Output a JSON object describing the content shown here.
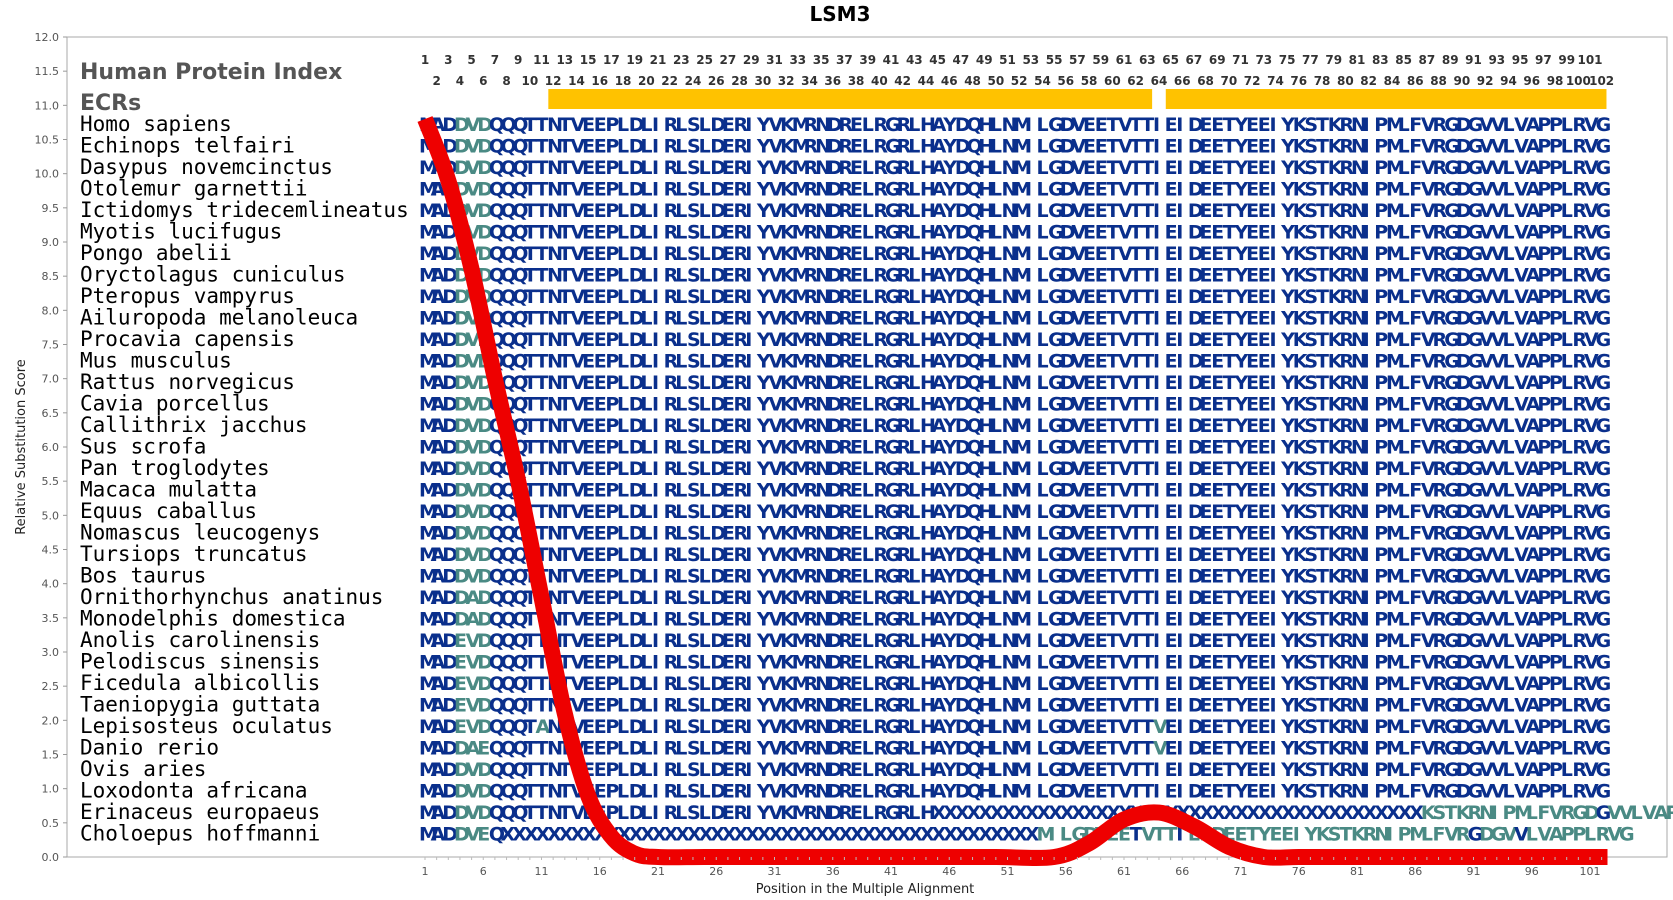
{
  "chart_data": {
    "type": "line",
    "title": "LSM3",
    "xlabel": "Position in the Multiple Alignment",
    "ylabel": "Relative Substitution Score",
    "ylim": [
      0,
      12
    ],
    "xlim": [
      0,
      103
    ],
    "y_ticks": [
      "0.0",
      "0.5",
      "1.0",
      "1.5",
      "2.0",
      "2.5",
      "3.0",
      "3.5",
      "4.0",
      "4.5",
      "5.0",
      "5.5",
      "6.0",
      "6.5",
      "7.0",
      "7.5",
      "8.0",
      "8.5",
      "9.0",
      "9.5",
      "10.0",
      "10.5",
      "11.0",
      "11.5",
      "12.0"
    ],
    "x_ticks": [
      "1",
      "6",
      "11",
      "16",
      "21",
      "26",
      "31",
      "36",
      "41",
      "46",
      "51",
      "56",
      "61",
      "66",
      "71",
      "76",
      "81",
      "86",
      "91",
      "96",
      "101"
    ],
    "grid": false,
    "header_labels": {
      "protein_index": "Human Protein Index",
      "ecrs": "ECRs"
    },
    "position_numbers": [
      "1",
      "2",
      "3",
      "4",
      "5",
      "6",
      "7",
      "8",
      "9",
      "10",
      "11",
      "12",
      "13",
      "14",
      "15",
      "16",
      "17",
      "18",
      "19",
      "20",
      "21",
      "22",
      "23",
      "24",
      "25",
      "26",
      "27",
      "28",
      "29",
      "30",
      "31",
      "32",
      "33",
      "34",
      "35",
      "36",
      "37",
      "38",
      "39",
      "40",
      "41",
      "42",
      "43",
      "44",
      "45",
      "46",
      "47",
      "48",
      "49",
      "50",
      "51",
      "52",
      "53",
      "54",
      "55",
      "56",
      "57",
      "58",
      "59",
      "60",
      "61",
      "62",
      "63",
      "64",
      "65",
      "66",
      "67",
      "68",
      "69",
      "70",
      "71",
      "72",
      "73",
      "74",
      "75",
      "76",
      "77",
      "78",
      "79",
      "80",
      "81",
      "82",
      "83",
      "84",
      "85",
      "86",
      "87",
      "88",
      "89",
      "90",
      "91",
      "92",
      "93",
      "94",
      "95",
      "96",
      "97",
      "98",
      "99",
      "100",
      "101",
      "102"
    ],
    "ecr_ranges": [
      [
        12,
        63
      ],
      [
        65,
        102
      ]
    ],
    "colors": {
      "conserved": "#0a2f8c",
      "variable": "#4a8a84",
      "curve": "#ee0000",
      "ecr": "#ffc200"
    },
    "series": [
      {
        "x": [
          1,
          3,
          5,
          7,
          9,
          11,
          13,
          15,
          17,
          19,
          21,
          25,
          30,
          35,
          40,
          45,
          50,
          55,
          58,
          61,
          64,
          67,
          70,
          73,
          76,
          80,
          85,
          90,
          95,
          100,
          102.5
        ],
        "y": [
          10.8,
          9.9,
          8.6,
          7.0,
          5.5,
          3.8,
          2.1,
          0.9,
          0.3,
          0.05,
          0.0,
          0.0,
          0.0,
          0.0,
          0.0,
          0.0,
          0.0,
          0.0,
          0.2,
          0.55,
          0.65,
          0.45,
          0.15,
          0.0,
          0.0,
          0.0,
          0.0,
          0.0,
          0.0,
          0.0,
          0.0
        ]
      }
    ],
    "alignment": [
      {
        "species": "Homo sapiens",
        "sequence": "MADDVDQQQTTNTVEEPLDLIRLSLDERIYVKMRNDRELRGRLHAYDQHLNMILGDVEETVTTIEIDEETYEEIYKSTKRNIPMLFVRGDGVVLVAPPLRVG"
      },
      {
        "species": "Echinops telfairi",
        "sequence": "MADDVDQQQTTNTVEEPLDLIRLSLDERIYVKMRNDRELRGRLHAYDQHLNMILGDVEETVTTIEIDEETYEEIYKSTKRNIPMLFVRGDGVVLVAPPLRVG"
      },
      {
        "species": "Dasypus novemcinctus",
        "sequence": "MADDVDQQQTTNTVEEPLDLIRLSLDERIYVKMRNDRELRGRLHAYDQHLNMILGDVEETVTTIEIDEETYEEIYKSTKRNIPMLFVRGDGVVLVAPPLRVG"
      },
      {
        "species": "Otolemur garnettii",
        "sequence": "MADDVDQQQTTNTVEEPLDLIRLSLDERIYVKMRNDRELRGRLHAYDQHLNMILGDVEETVTTIEIDEETYEEIYKSTKRNIPMLFVRGDGVVLVAPPLRVG"
      },
      {
        "species": "Ictidomys tridecemlineatus",
        "sequence": "MADDVDQQQTTNTVEEPLDLIRLSLDERIYVKMRNDRELRGRLHAYDQHLNMILGDVEETVTTIEIDEETYEEIYKSTKRNIPMLFVRGDGVVLVAPPLRVG"
      },
      {
        "species": "Myotis lucifugus",
        "sequence": "MADDVDQQQTTNTVEEPLDLIRLSLDERIYVKMRNDRELRGRLHAYDQHLNMILGDVEETVTTIEIDEETYEEIYKSTKRNIPMLFVRGDGVVLVAPPLRVG"
      },
      {
        "species": "Pongo abelii",
        "sequence": "MADDVDQQQTTNTVEEPLDLIRLSLDERIYVKMRNDRELRGRLHAYDQHLNMILGDVEETVTTIEIDEETYEEIYKSTKRNIPMLFVRGDGVVLVAPPLRVG"
      },
      {
        "species": "Oryctolagus cuniculus",
        "sequence": "MADDVDQQQTTNTVEEPLDLIRLSLDERIYVKMRNDRELRGRLHAYDQHLNMILGDVEETVTTIEIDEETYEEIYKSTKRNIPMLFVRGDGVVLVAPPLRVG"
      },
      {
        "species": "Pteropus vampyrus",
        "sequence": "MADDVDQQQTTNTVEEPLDLIRLSLDERIYVKMRNDRELRGRLHAYDQHLNMILGDVEETVTTIEIDEETYEEIYKSTKRNIPMLFVRGDGVVLVAPPLRVG"
      },
      {
        "species": "Ailuropoda melanoleuca",
        "sequence": "MADDVDQQQTTNTVEEPLDLIRLSLDERIYVKMRNDRELRGRLHAYDQHLNMILGDVEETVTTIEIDEETYEEIYKSTKRNIPMLFVRGDGVVLVAPPLRVG"
      },
      {
        "species": "Procavia capensis",
        "sequence": "MADDVDQQQTTNTVEEPLDLIRLSLDERIYVKMRNDRELRGRLHAYDQHLNMILGDVEETVTTIEIDEETYEEIYKSTKRNIPMLFVRGDGVVLVAPPLRVG"
      },
      {
        "species": "Mus musculus",
        "sequence": "MADDVDQQQTTNTVEEPLDLIRLSLDERIYVKMRNDRELRGRLHAYDQHLNMILGDVEETVTTIEIDEETYEEIYKSTKRNIPMLFVRGDGVVLVAPPLRVG"
      },
      {
        "species": "Rattus norvegicus",
        "sequence": "MADDVDQQQTTNTVEEPLDLIRLSLDERIYVKMRNDRELRGRLHAYDQHLNMILGDVEETVTTIEIDEETYEEIYKSTKRNIPMLFVRGDGVVLVAPPLRVG"
      },
      {
        "species": "Cavia porcellus",
        "sequence": "MADDVDQQQTTNTVEEPLDLIRLSLDERIYVKMRNDRELRGRLHAYDQHLNMILGDVEETVTTIEIDEETYEEIYKSTKRNIPMLFVRGDGVVLVAPPLRVG"
      },
      {
        "species": "Callithrix jacchus",
        "sequence": "MADDVDQQQTTNTVEEPLDLIRLSLDERIYVKMRNDRELRGRLHAYDQHLNMILGDVEETVTTIEIDEETYEEIYKSTKRNIPMLFVRGDGVVLVAPPLRVG"
      },
      {
        "species": "Sus scrofa",
        "sequence": "MADDVDQQQTTNTVEEPLDLIRLSLDERIYVKMRNDRELRGRLHAYDQHLNMILGDVEETVTTIEIDEETYEEIYKSTKRNIPMLFVRGDGVVLVAPPLRVG"
      },
      {
        "species": "Pan troglodytes",
        "sequence": "MADDVDQQQTTNTVEEPLDLIRLSLDERIYVKMRNDRELRGRLHAYDQHLNMILGDVEETVTTIEIDEETYEEIYKSTKRNIPMLFVRGDGVVLVAPPLRVG"
      },
      {
        "species": "Macaca mulatta",
        "sequence": "MADDVDQQQTTNTVEEPLDLIRLSLDERIYVKMRNDRELRGRLHAYDQHLNMILGDVEETVTTIEIDEETYEEIYKSTKRNIPMLFVRGDGVVLVAPPLRVG"
      },
      {
        "species": "Equus caballus",
        "sequence": "MADDVDQQQTTNTVEEPLDLIRLSLDERIYVKMRNDRELRGRLHAYDQHLNMILGDVEETVTTIEIDEETYEEIYKSTKRNIPMLFVRGDGVVLVAPPLRVG"
      },
      {
        "species": "Nomascus leucogenys",
        "sequence": "MADDVDQQQTTNTVEEPLDLIRLSLDERIYVKMRNDRELRGRLHAYDQHLNMILGDVEETVTTIEIDEETYEEIYKSTKRNIPMLFVRGDGVVLVAPPLRVG"
      },
      {
        "species": "Tursiops truncatus",
        "sequence": "MADDVDQQQTTNTVEEPLDLIRLSLDERIYVKMRNDRELRGRLHAYDQHLNMILGDVEETVTTIEIDEETYEEIYKSTKRNIPMLFVRGDGVVLVAPPLRVG"
      },
      {
        "species": "Bos taurus",
        "sequence": "MADDVDQQQTTNTVEEPLDLIRLSLDERIYVKMRNDRELRGRLHAYDQHLNMILGDVEETVTTIEIDEETYEEIYKSTKRNIPMLFVRGDGVVLVAPPLRVG"
      },
      {
        "species": "Ornithorhynchus anatinus",
        "sequence": "MADDADQQQTTNTVEEPLDLIRLSLDERIYVKMRNDRELRGRLHAYDQHLNMILGDVEETVTTIEIDEETYEEIYKSTKRNIPMLFVRGDGVVLVAPPLRVG"
      },
      {
        "species": "Monodelphis domestica",
        "sequence": "MADDADQQQTTNTVEEPLDLIRLSLDERIYVKMRNDRELRGRLHAYDQHLNMILGDVEETVTTIEIDEETYEEIYKSTKRNIPMLFVRGDGVVLVAPPLRVG"
      },
      {
        "species": "Anolis carolinensis",
        "sequence": "MADEVDQQQTTNTVEEPLDLIRLSLDERIYVKMRNDRELRGRLHAYDQHLNMILGDVEETVTTIEIDEETYEEIYKSTKRNIPMLFVRGDGVVLVAPPLRVG"
      },
      {
        "species": "Pelodiscus sinensis",
        "sequence": "MADEVDQQQTTNTVEEPLDLIRLSLDERIYVKMRNDRELRGRLHAYDQHLNMILGDVEETVTTIEIDEETYEEIYKSTKRNIPMLFVRGDGVVLVAPPLRVG"
      },
      {
        "species": "Ficedula albicollis",
        "sequence": "MADEVDQQQTTNTVEEPLDLIRLSLDERIYVKMRNDRELRGRLHAYDQHLNMILGDVEETVTTIEIDEETYEEIYKSTKRNIPMLFVRGDGVVLVAPPLRVG"
      },
      {
        "species": "Taeniopygia guttata",
        "sequence": "MADEVDQQQTTNTVEEPLDLIRLSLDERIYVKMRNDRELRGRLHAYDQHLNMILGDVEETVTTIEIDEETYEEIYKSTKRNIPMLFVRGDGVVLVAPPLRVG"
      },
      {
        "species": "Lepisosteus oculatus",
        "sequence": "MADEVDQQQTANTVEEPLDLIRLSLDERIYVKMRNDRELRGRLHAYDQHLNMILGDVEETVTTVEIDEETYEEIYKSTKRNIPMLFVRGDGVVLVAPPLRVG"
      },
      {
        "species": "Danio rerio",
        "sequence": "MADDAEQQQTTNTVEEPLDLIRLSLDERIYVKMRNDRELRGRLHAYDQHLNMILGDVEETVTTVEIDEETYEEIYKSTKRNIPMLFVRGDGVVLVAPPLRVG"
      },
      {
        "species": "Ovis aries",
        "sequence": "MADDVDQQQTTNTVEEPLDLIRLSLDERIYVKMRNDRELRGRLHAYDQHLNMILGDVEETVTTIEIDEETYEEIYKSTKRNIPMLFVRGDGVVLVAPPLRVG"
      },
      {
        "species": "Loxodonta africana",
        "sequence": "MADDVDQQQTTNTVEEPLDLIRLSLDERIYVKMRNDRELRGRLHAYDQHLNMILGDVEETVTTIEIDEETYEEIYKSTKRNIPMLFVRGDGVVLVAPPLRVG"
      },
      {
        "species": "Erinaceus europaeus",
        "sequence": "MADDVDQQQTTNTVEEPLDLIRLSLDERIYVKMRNDRELRGRLHXXXXXXXXXXXXXXXXXXXXXXXXXXXXXXXXXXXXXXXXXXKSTKRNIPMLFVRGDGVVLVAPPLRVG"
      },
      {
        "species": "Choloepus hoffmanni",
        "sequence": "MADDVEQXXXXXXXXXXXXXXXXXXXXXXXXXXXXXXXXXXXXXXXXXXXXXXMILGDVEETVTTIEIDEETYEEIYKSTKRNIPMLFVRGDGVVLVAPPLRVG"
      }
    ]
  }
}
